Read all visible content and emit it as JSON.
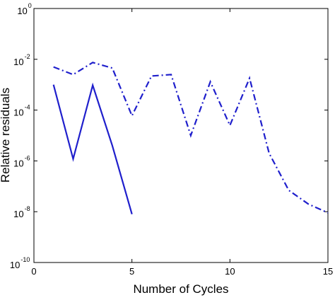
{
  "chart_data": {
    "type": "line",
    "xlabel": "Number of Cycles",
    "ylabel": "Relative residuals",
    "xlim": [
      0,
      15
    ],
    "ylim": [
      1e-10,
      1
    ],
    "y_scale": "log",
    "grid": false,
    "x_ticks": [
      0,
      5,
      10,
      15
    ],
    "x_tick_labels": [
      "0",
      "5",
      "10",
      "15"
    ],
    "y_ticks": [
      {
        "value": 1e-10,
        "base": "10",
        "exponent": "-10"
      },
      {
        "value": 1e-08,
        "base": "10",
        "exponent": "-8"
      },
      {
        "value": 1e-06,
        "base": "10",
        "exponent": "-6"
      },
      {
        "value": 0.0001,
        "base": "10",
        "exponent": "-4"
      },
      {
        "value": 0.01,
        "base": "10",
        "exponent": "-2"
      },
      {
        "value": 1,
        "base": "10",
        "exponent": "0"
      }
    ],
    "series": [
      {
        "style": "solid",
        "color": "#1f1fcc",
        "x": [
          1,
          2,
          3,
          4,
          5
        ],
        "y": [
          0.001,
          1.2e-06,
          0.00095,
          4e-06,
          8e-09
        ]
      },
      {
        "style": "dashdot",
        "color": "#1f1fcc",
        "x": [
          1,
          2,
          3,
          4,
          5,
          6,
          7,
          8,
          9,
          10,
          11,
          12,
          13,
          14,
          15
        ],
        "y": [
          0.005,
          0.0025,
          0.0075,
          0.0045,
          6e-05,
          0.0022,
          0.0025,
          1e-05,
          0.0013,
          2.5e-05,
          0.0018,
          2e-06,
          7e-08,
          2e-08,
          9e-09
        ]
      }
    ]
  }
}
